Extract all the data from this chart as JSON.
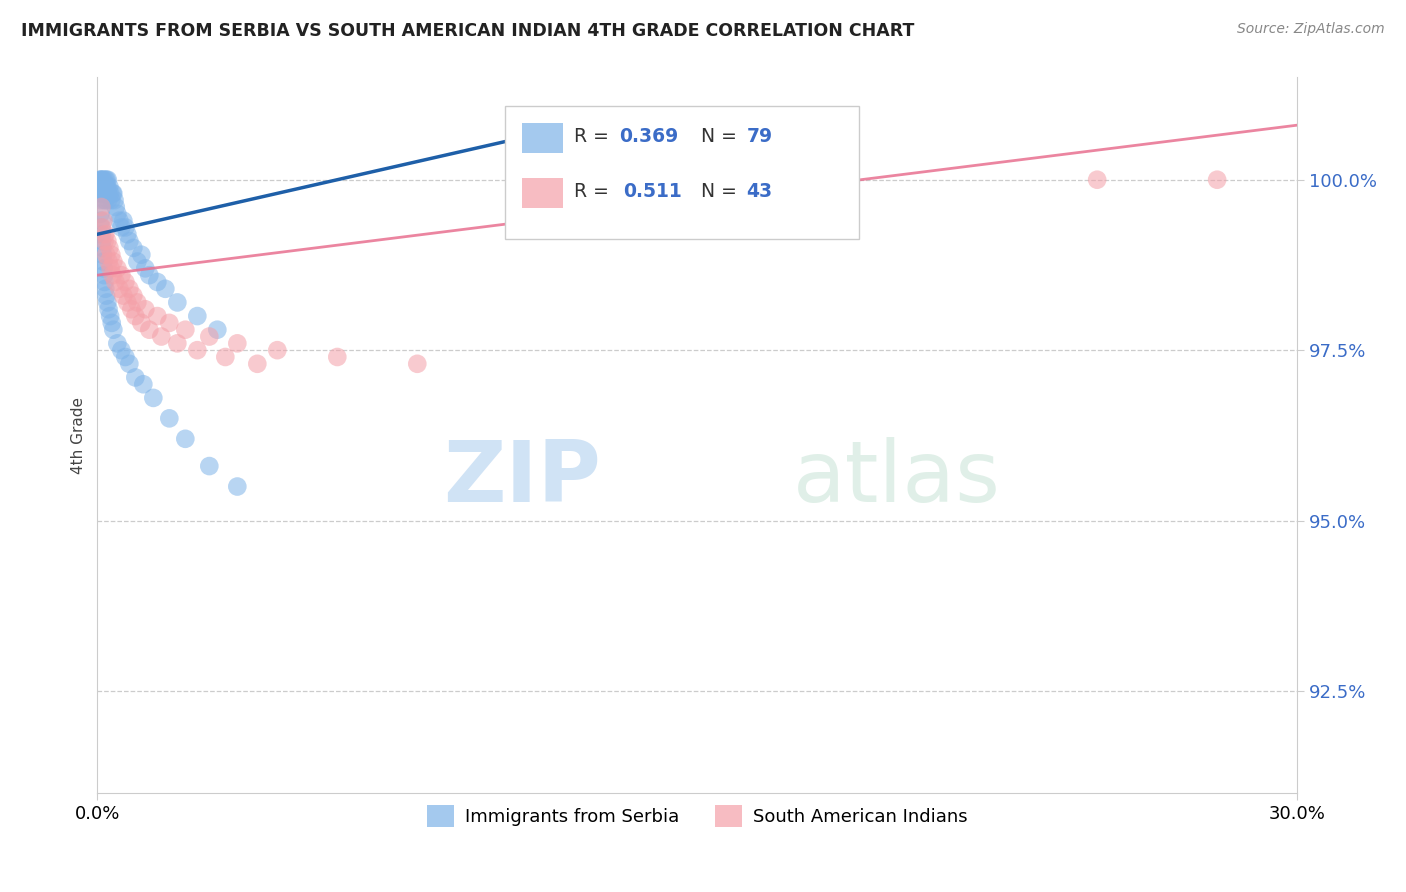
{
  "title": "IMMIGRANTS FROM SERBIA VS SOUTH AMERICAN INDIAN 4TH GRADE CORRELATION CHART",
  "source": "Source: ZipAtlas.com",
  "ylabel": "4th Grade",
  "xlim": [
    0.0,
    30.0
  ],
  "ylim": [
    91.0,
    101.5
  ],
  "ytick_vals": [
    92.5,
    95.0,
    97.5,
    100.0
  ],
  "ytick_labels": [
    "92.5%",
    "95.0%",
    "97.5%",
    "100.0%"
  ],
  "legend_label1": "Immigrants from Serbia",
  "legend_label2": "South American Indians",
  "blue_color": "#7EB3E8",
  "pink_color": "#F4A0A8",
  "blue_line_color": "#1E5FA8",
  "pink_line_color": "#E87090",
  "watermark_zip": "ZIP",
  "watermark_atlas": "atlas",
  "serbia_x": [
    0.05,
    0.06,
    0.07,
    0.08,
    0.09,
    0.1,
    0.1,
    0.11,
    0.12,
    0.13,
    0.14,
    0.15,
    0.16,
    0.17,
    0.18,
    0.19,
    0.2,
    0.2,
    0.21,
    0.22,
    0.23,
    0.24,
    0.25,
    0.26,
    0.27,
    0.28,
    0.3,
    0.32,
    0.35,
    0.38,
    0.4,
    0.43,
    0.46,
    0.5,
    0.55,
    0.6,
    0.65,
    0.7,
    0.75,
    0.8,
    0.9,
    1.0,
    1.1,
    1.2,
    1.3,
    1.5,
    1.7,
    2.0,
    2.5,
    3.0,
    0.08,
    0.09,
    0.1,
    0.11,
    0.12,
    0.13,
    0.14,
    0.15,
    0.16,
    0.17,
    0.18,
    0.2,
    0.22,
    0.25,
    0.28,
    0.32,
    0.36,
    0.4,
    0.5,
    0.6,
    0.7,
    0.8,
    0.95,
    1.15,
    1.4,
    1.8,
    2.2,
    2.8,
    3.5
  ],
  "serbia_y": [
    99.8,
    99.9,
    100.0,
    100.0,
    99.7,
    100.0,
    99.9,
    99.8,
    99.9,
    100.0,
    99.8,
    99.9,
    100.0,
    99.7,
    99.8,
    99.9,
    100.0,
    99.8,
    99.7,
    99.9,
    100.0,
    99.8,
    99.9,
    100.0,
    99.7,
    99.8,
    99.9,
    99.8,
    99.7,
    99.8,
    99.8,
    99.7,
    99.6,
    99.5,
    99.4,
    99.3,
    99.4,
    99.3,
    99.2,
    99.1,
    99.0,
    98.8,
    98.9,
    98.7,
    98.6,
    98.5,
    98.4,
    98.2,
    98.0,
    97.8,
    99.5,
    99.4,
    99.3,
    99.2,
    99.1,
    99.0,
    98.9,
    98.8,
    98.7,
    98.6,
    98.5,
    98.4,
    98.3,
    98.2,
    98.1,
    98.0,
    97.9,
    97.8,
    97.6,
    97.5,
    97.4,
    97.3,
    97.1,
    97.0,
    96.8,
    96.5,
    96.2,
    95.8,
    95.5
  ],
  "india_x": [
    0.1,
    0.15,
    0.2,
    0.25,
    0.3,
    0.35,
    0.4,
    0.5,
    0.6,
    0.7,
    0.8,
    0.9,
    1.0,
    1.2,
    1.5,
    1.8,
    2.2,
    2.8,
    3.5,
    4.5,
    6.0,
    8.0,
    25.0,
    28.0,
    0.12,
    0.18,
    0.22,
    0.28,
    0.33,
    0.38,
    0.45,
    0.55,
    0.65,
    0.75,
    0.85,
    0.95,
    1.1,
    1.3,
    1.6,
    2.0,
    2.5,
    3.2,
    4.0
  ],
  "india_y": [
    99.6,
    99.4,
    99.2,
    99.1,
    99.0,
    98.9,
    98.8,
    98.7,
    98.6,
    98.5,
    98.4,
    98.3,
    98.2,
    98.1,
    98.0,
    97.9,
    97.8,
    97.7,
    97.6,
    97.5,
    97.4,
    97.3,
    100.0,
    100.0,
    99.3,
    99.1,
    98.9,
    98.8,
    98.7,
    98.6,
    98.5,
    98.4,
    98.3,
    98.2,
    98.1,
    98.0,
    97.9,
    97.8,
    97.7,
    97.6,
    97.5,
    97.4,
    97.3
  ],
  "serbia_trendline_x": [
    0.0,
    12.0
  ],
  "serbia_trendline_y": [
    99.2,
    100.8
  ],
  "india_trendline_x": [
    0.0,
    30.0
  ],
  "india_trendline_y": [
    98.6,
    100.8
  ]
}
